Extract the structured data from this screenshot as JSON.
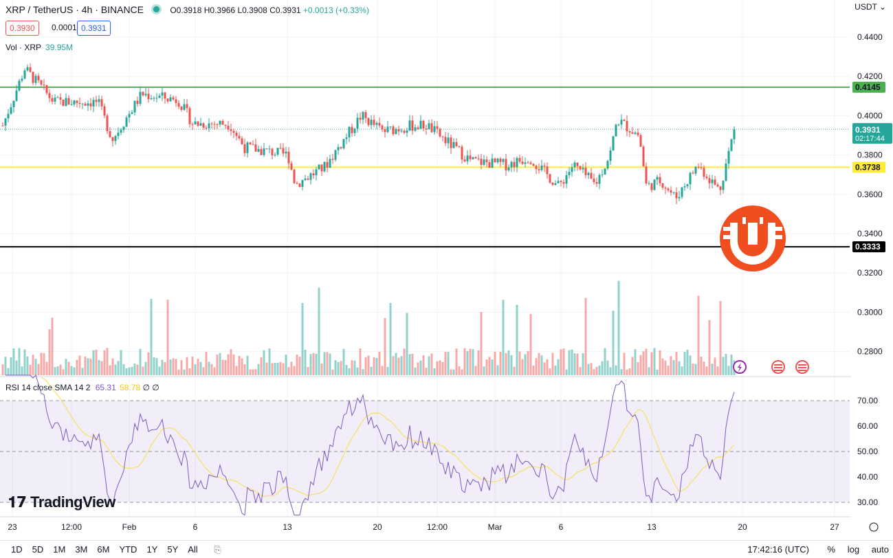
{
  "header": {
    "title": "XRP / TetherUS · 4h · BINANCE",
    "open": "O0.3918",
    "high": "H0.3966",
    "low": "L0.3908",
    "close": "C0.3931",
    "change": "+0.0013 (+0.33%)",
    "bid": "0.3930",
    "spread": "0.0001",
    "ask": "0.3931",
    "currency": "USDT"
  },
  "volume_label": {
    "name": "Vol · XRP",
    "value": "39.95M"
  },
  "rsi_label": {
    "name": "RSI 14 close SMA 14 2",
    "rsi": "65.31",
    "sma": "58.78",
    "extra": "∅ ∅"
  },
  "footer": {
    "ranges": [
      "1D",
      "5D",
      "1M",
      "3M",
      "6M",
      "YTD",
      "1Y",
      "5Y",
      "All"
    ],
    "time": "17:42:16 (UTC)",
    "percent": "%",
    "log": "log",
    "auto": "auto"
  },
  "branding": {
    "logo_text": "TradingView"
  },
  "colors": {
    "up": "#26a69a",
    "down": "#ef5350",
    "rsi": "#7e57c2",
    "rsi_sma": "#f6e05e",
    "green_line": "#4caf50",
    "yellow_line": "#ffeb3b",
    "black_line": "#000000"
  },
  "chart_data": [
    {
      "type": "candlestick",
      "title": "XRP / TetherUS · 4h · BINANCE",
      "y_ticks": [
        0.28,
        0.3,
        0.32,
        0.34,
        0.36,
        0.38,
        0.4,
        0.42,
        0.44
      ],
      "y_tick_labels": [
        "0.2800",
        "0.3000",
        "0.3200",
        "0.3400",
        "0.3600",
        "0.3800",
        "0.4000",
        "0.4200",
        "0.4400"
      ],
      "x_tick_labels": [
        "23",
        "12:00",
        "Feb",
        "6",
        "13",
        "20",
        "12:00",
        "Mar",
        "6",
        "13",
        "20",
        "27"
      ],
      "horizontal_lines": [
        {
          "value": 0.4145,
          "label": "0.4145",
          "color": "#4caf50"
        },
        {
          "value": 0.3738,
          "label": "0.3738",
          "color": "#ffeb3b"
        },
        {
          "value": 0.3333,
          "label": "0.3333",
          "color": "#000000"
        }
      ],
      "last_price": {
        "value": 0.3931,
        "label": "0.3931",
        "countdown": "02:17:44"
      },
      "path_x": [
        0,
        0.03,
        0.07,
        0.13,
        0.15,
        0.19,
        0.24,
        0.26,
        0.31,
        0.33,
        0.39,
        0.4,
        0.44,
        0.49,
        0.52,
        0.56,
        0.58,
        0.64,
        0.69,
        0.72,
        0.76,
        0.78,
        0.81,
        0.83,
        0.84,
        0.87,
        0.88,
        0.9,
        0.92,
        0.95,
        0.98,
        1.0
      ],
      "path_y": [
        0.395,
        0.424,
        0.407,
        0.407,
        0.388,
        0.411,
        0.408,
        0.396,
        0.396,
        0.384,
        0.38,
        0.365,
        0.374,
        0.4,
        0.392,
        0.395,
        0.395,
        0.377,
        0.375,
        0.379,
        0.364,
        0.375,
        0.365,
        0.38,
        0.398,
        0.39,
        0.364,
        0.367,
        0.358,
        0.375,
        0.362,
        0.393
      ]
    },
    {
      "type": "bar",
      "title": "Vol · XRP",
      "last": "39.95M"
    },
    {
      "type": "line",
      "title": "RSI 14 close SMA 14 2",
      "y_ticks": [
        30,
        40,
        50,
        60,
        70
      ],
      "y_tick_labels": [
        "30.00",
        "40.00",
        "50.00",
        "60.00",
        "70.00"
      ],
      "last_rsi": 65.31,
      "last_sma": 58.78,
      "bands": [
        30,
        50,
        70
      ]
    }
  ]
}
